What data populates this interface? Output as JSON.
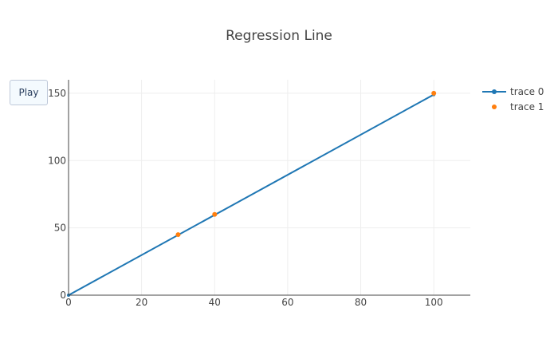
{
  "colors": {
    "trace0": "#1f77b4",
    "trace1": "#ff7f0e",
    "text": "#444444",
    "grid": "#eeeeee"
  },
  "controls": {
    "play_label": "Play"
  },
  "chart_data": {
    "type": "scatter",
    "title": "Regression Line",
    "xlabel": "",
    "ylabel": "",
    "xlim": [
      0,
      110
    ],
    "ylim": [
      0,
      160
    ],
    "xticks": [
      0,
      20,
      40,
      60,
      80,
      100
    ],
    "yticks": [
      0,
      50,
      100,
      150
    ],
    "grid": true,
    "legend_position": "top-right",
    "series": [
      {
        "name": "trace 0",
        "mode": "lines+markers",
        "x": [
          0,
          100
        ],
        "y": [
          0,
          149
        ]
      },
      {
        "name": "trace 1",
        "mode": "markers",
        "x": [
          30,
          40,
          100
        ],
        "y": [
          45,
          60,
          150
        ]
      }
    ]
  }
}
